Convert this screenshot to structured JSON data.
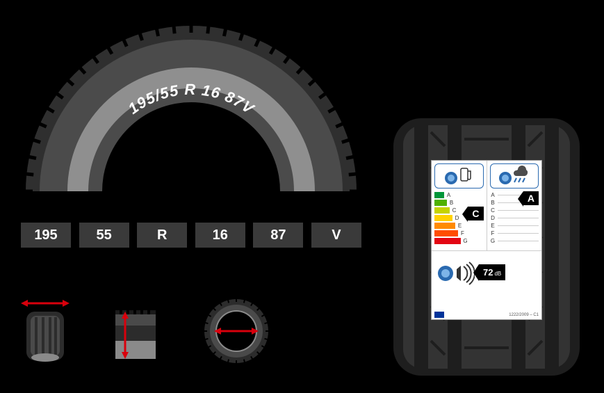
{
  "tyre_arch": {
    "size_text": "195/55 R 16 87V",
    "outer_color": "#2f2f2f",
    "tread_color": "#1f1f1f",
    "sidewall_color": "#4b4b4b",
    "inner_color": "#8f8f8f",
    "text_color": "#ffffff"
  },
  "boxes": {
    "values": [
      "195",
      "55",
      "R",
      "16",
      "87",
      "V"
    ],
    "bg": "#3a3a3a",
    "text": "#ffffff"
  },
  "measure_icons": {
    "arrow_color": "#d8000c",
    "tyre_dark": "#2c2c2c",
    "tyre_mid": "#4a4a4a",
    "tyre_light": "#8a8a8a"
  },
  "eu_label": {
    "fuel_grades": [
      "A",
      "B",
      "C",
      "D",
      "E",
      "F",
      "G"
    ],
    "fuel_colors": [
      "#009639",
      "#4fb100",
      "#c5d300",
      "#ffd200",
      "#ff8a00",
      "#ff4d00",
      "#e30613"
    ],
    "fuel_bar_widths": [
      14,
      18,
      22,
      26,
      30,
      34,
      38
    ],
    "fuel_selected": "C",
    "wet_grades": [
      "A",
      "B",
      "C",
      "D",
      "E",
      "F",
      "G"
    ],
    "wet_selected": "A",
    "noise_value": "72",
    "noise_unit": "dB",
    "noise_waves": 3,
    "reg_text": "1222/2009 – C1",
    "icon_border": "#2a6ab0",
    "badge_bg": "#000000",
    "badge_text": "#ffffff",
    "tyre_blue": "#2a6ab0"
  },
  "right_tyre": {
    "dark": "#1e1e1e",
    "mid": "#333333",
    "light": "#4d4d4d"
  }
}
